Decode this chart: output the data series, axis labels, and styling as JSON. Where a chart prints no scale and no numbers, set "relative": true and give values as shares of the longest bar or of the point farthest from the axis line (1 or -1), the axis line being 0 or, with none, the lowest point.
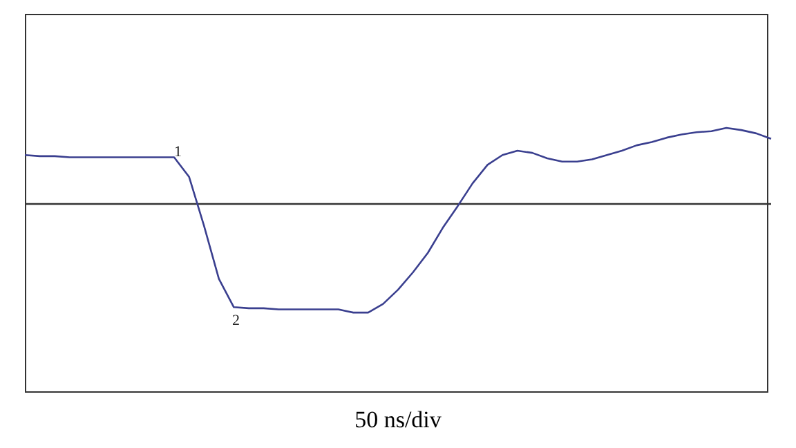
{
  "chart_data": {
    "type": "line",
    "relative": true,
    "xlabel": "50 ns/div",
    "legend": false,
    "marker": "none",
    "line_style": "solid",
    "categories": [
      null,
      null,
      null,
      null,
      null,
      null,
      null,
      null,
      null,
      null,
      null,
      null,
      null,
      null,
      null,
      null,
      null,
      null,
      null,
      null,
      null,
      null,
      null,
      null,
      null,
      null,
      null,
      null,
      null,
      null,
      null,
      null,
      null,
      null,
      null,
      null,
      null,
      null,
      null,
      null,
      null,
      null,
      null,
      null,
      null,
      null,
      null,
      null,
      null,
      null,
      null
    ],
    "series": [
      {
        "color": "#3a3f8f",
        "values": [
          0.45,
          0.44,
          0.44,
          0.43,
          0.43,
          0.43,
          0.43,
          0.43,
          0.43,
          0.43,
          0.43,
          0.25,
          -0.2,
          -0.69,
          -0.95,
          -0.96,
          -0.96,
          -0.97,
          -0.97,
          -0.97,
          -0.97,
          -0.97,
          -1,
          -1,
          -0.92,
          -0.79,
          -0.63,
          -0.45,
          -0.22,
          -0.02,
          0.19,
          0.36,
          0.45,
          0.49,
          0.47,
          0.42,
          0.39,
          0.39,
          0.41,
          0.45,
          0.49,
          0.54,
          0.57,
          0.61,
          0.64,
          0.66,
          0.67,
          0.7,
          0.68,
          0.65,
          0.6
        ]
      }
    ],
    "annotations": [
      "1",
      "2"
    ]
  }
}
